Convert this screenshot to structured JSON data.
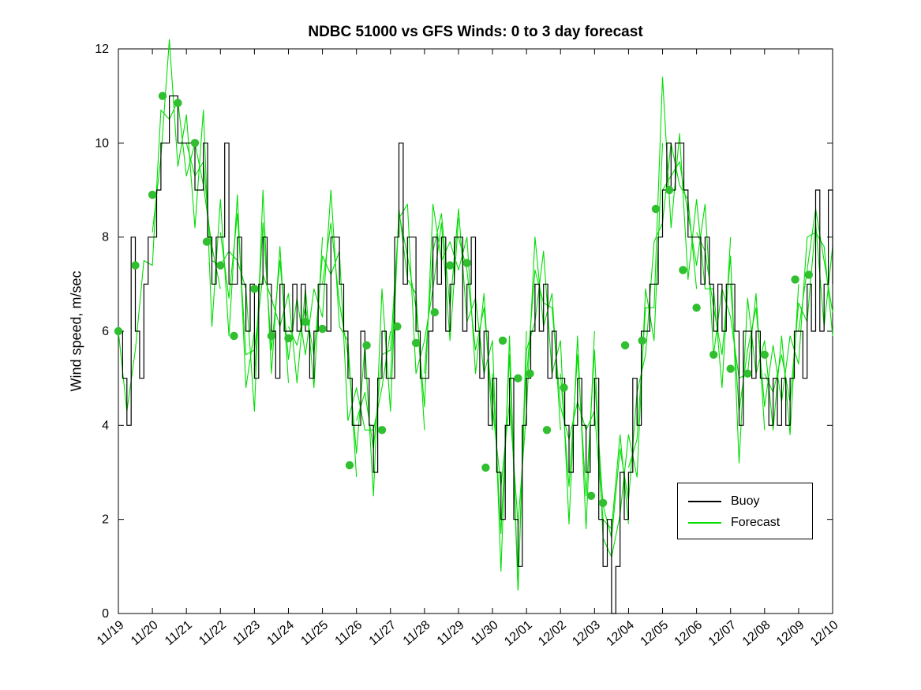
{
  "chart_data": {
    "type": "line",
    "title": "NDBC 51000 vs GFS Winds: 0 to 3 day forecast",
    "xlabel": "",
    "ylabel": "Wind speed, m/sec",
    "ylim": [
      0,
      12
    ],
    "yticks": [
      0,
      2,
      4,
      6,
      8,
      10,
      12
    ],
    "x_range_days": [
      0,
      21
    ],
    "xtick_labels": [
      "11/19",
      "11/20",
      "11/21",
      "11/22",
      "11/23",
      "11/24",
      "11/25",
      "11/26",
      "11/27",
      "11/28",
      "11/29",
      "11/30",
      "12/01",
      "12/02",
      "12/03",
      "12/04",
      "12/05",
      "12/06",
      "12/07",
      "12/08",
      "12/09",
      "12/10"
    ],
    "grid": false,
    "legend": {
      "entries": [
        "Buoy",
        "Forecast"
      ],
      "position": "lower right"
    },
    "colors": {
      "buoy": "#000000",
      "forecast": "#00dd00",
      "dot": "#2fbf2f",
      "axis": "#000000"
    },
    "buoy": {
      "name": "Buoy",
      "style": "stairs",
      "start_day": 0,
      "step_hours": 3,
      "values": [
        6,
        5,
        4,
        8,
        6,
        5,
        7,
        8,
        8,
        9,
        10,
        10,
        11,
        11,
        10,
        10,
        10,
        10,
        9,
        9,
        10,
        8,
        7,
        8,
        8,
        10,
        7,
        7,
        8,
        7,
        6,
        7,
        5,
        7,
        8,
        7,
        6,
        5,
        7,
        6,
        6,
        7,
        6,
        7,
        6,
        5,
        6,
        7,
        7,
        6,
        8,
        8,
        7,
        6,
        5,
        4,
        4,
        6,
        5,
        4,
        3,
        5,
        6,
        5,
        5,
        8,
        10,
        7,
        8,
        8,
        6,
        5,
        5,
        6,
        8,
        7,
        8,
        6,
        7,
        8,
        8,
        6,
        7,
        8,
        6,
        5,
        6,
        4,
        5,
        3,
        2,
        4,
        5,
        2,
        1,
        4,
        5,
        6,
        7,
        6,
        7,
        5,
        6,
        5,
        5,
        4,
        3,
        4,
        5,
        4,
        3,
        4,
        5,
        2,
        1,
        2,
        0,
        1,
        3,
        2,
        3,
        5,
        4,
        6,
        6,
        7,
        7,
        8,
        9,
        10,
        9,
        10,
        10,
        9,
        8,
        8,
        8,
        7,
        8,
        7,
        6,
        7,
        6,
        7,
        7,
        6,
        4,
        6,
        6,
        5,
        6,
        5,
        5,
        4,
        5,
        4,
        5,
        4,
        5,
        6,
        6,
        5,
        7,
        6,
        9,
        6,
        7,
        9,
        7
      ]
    },
    "forecast_runs": [
      {
        "start_day": 0,
        "step_hours": 6,
        "values": [
          6.0,
          4.3,
          5.6,
          7.5,
          7.4,
          10.7,
          10.5,
          10.9,
          9.3,
          10.0,
          9.1,
          7.8,
          6.9
        ]
      },
      {
        "start_day": 1,
        "step_hours": 6,
        "values": [
          8.1,
          9.7,
          12.2,
          9.5,
          10.6,
          8.2,
          10.7,
          6.1,
          8.8,
          5.9,
          8.9,
          4.8,
          6.0
        ]
      },
      {
        "start_day": 2,
        "step_hours": 6,
        "values": [
          10.0,
          9.3,
          9.6,
          7.5,
          7.4,
          7.7,
          7.5,
          6.9,
          4.3,
          9.0,
          5.1,
          7.8,
          4.9
        ]
      },
      {
        "start_day": 3,
        "step_hours": 6,
        "values": [
          8.1,
          6.7,
          8.5,
          5.5,
          5.6,
          7.2,
          6.7,
          6.1,
          6.8,
          4.9,
          6.9,
          4.8,
          8.0
        ]
      },
      {
        "start_day": 4,
        "step_hours": 6,
        "values": [
          5.0,
          8.3,
          5.6,
          7.5,
          5.4,
          6.7,
          5.5,
          6.9,
          6.3,
          9.0,
          6.1,
          5.8,
          2.9
        ]
      },
      {
        "start_day": 5,
        "step_hours": 6,
        "values": [
          6.1,
          5.7,
          6.5,
          5.5,
          7.6,
          7.2,
          7.7,
          4.1,
          4.8,
          3.9,
          3.9,
          4.8,
          6.0
        ]
      },
      {
        "start_day": 6,
        "step_hours": 6,
        "values": [
          7.0,
          8.3,
          6.6,
          5.5,
          3.4,
          5.7,
          2.5,
          6.9,
          4.3,
          8.6,
          7.1,
          6.8,
          3.9
        ]
      },
      {
        "start_day": 7,
        "step_hours": 6,
        "values": [
          4.1,
          4.7,
          3.5,
          5.5,
          5.6,
          8.4,
          8.7,
          5.1,
          5.8,
          6.9,
          8.3,
          5.8,
          8.4
        ]
      },
      {
        "start_day": 8,
        "step_hours": 6,
        "values": [
          5.0,
          8.5,
          7.6,
          6.5,
          4.4,
          8.7,
          7.5,
          7.9,
          7.3,
          8.0,
          5.1,
          6.8,
          3.9
        ]
      },
      {
        "start_day": 9,
        "step_hours": 6,
        "values": [
          5.1,
          7.7,
          8.5,
          6.5,
          8.6,
          6.2,
          6.7,
          5.1,
          5.8,
          0.9,
          5.9,
          0.5,
          6.0
        ]
      },
      {
        "start_day": 10,
        "step_hours": 6,
        "values": [
          8.0,
          7.3,
          5.6,
          6.5,
          4.4,
          2.7,
          4.5,
          1.9,
          4.3,
          8.0,
          6.1,
          6.8,
          3.9
        ]
      },
      {
        "start_day": 11,
        "step_hours": 6,
        "values": [
          5.1,
          1.7,
          5.5,
          0.5,
          5.6,
          6.2,
          7.7,
          5.1,
          5.8,
          1.9,
          5.9,
          1.8,
          6.0
        ]
      },
      {
        "start_day": 12,
        "step_hours": 6,
        "values": [
          5.0,
          7.3,
          6.6,
          6.5,
          4.4,
          3.7,
          4.5,
          3.9,
          4.3,
          2.0,
          1.8,
          3.8,
          1.9
        ]
      },
      {
        "start_day": 13,
        "step_hours": 6,
        "values": [
          5.1,
          2.7,
          5.5,
          2.5,
          5.6,
          1.6,
          1.2,
          2.1,
          3.8,
          2.9,
          6.9,
          5.8,
          10.0
        ]
      },
      {
        "start_day": 14,
        "step_hours": 6,
        "values": [
          5.0,
          2.3,
          1.6,
          3.5,
          2.4,
          4.7,
          5.5,
          7.9,
          8.3,
          10.0,
          9.1,
          8.8,
          6.9
        ]
      },
      {
        "start_day": 15,
        "step_hours": 6,
        "values": [
          3.1,
          3.7,
          6.5,
          6.5,
          11.4,
          8.2,
          10.2,
          7.1,
          8.8,
          6.9,
          6.9,
          4.8,
          8.0
        ]
      },
      {
        "start_day": 16,
        "step_hours": 6,
        "values": [
          9.0,
          9.3,
          9.6,
          8.5,
          7.4,
          8.7,
          5.5,
          6.9,
          6.3,
          5.0,
          5.1,
          6.8,
          3.9
        ]
      },
      {
        "start_day": 17,
        "step_hours": 6,
        "values": [
          8.1,
          7.7,
          6.5,
          5.5,
          7.6,
          3.2,
          6.7,
          5.1,
          5.8,
          3.9,
          5.9,
          3.8,
          7.0
        ]
      },
      {
        "start_day": 18,
        "step_hours": 6,
        "values": [
          7.0,
          4.3,
          5.6,
          6.5,
          4.4,
          5.7,
          4.5,
          5.9,
          5.3,
          8.0,
          8.1,
          7.8,
          5.9
        ]
      },
      {
        "start_day": 19,
        "step_hours": 6,
        "values": [
          5.1,
          4.7,
          5.5,
          4.5,
          6.6,
          6.2,
          8.3,
          6.1,
          7.8
        ]
      },
      {
        "start_day": 20,
        "step_hours": 6,
        "values": [
          6.0,
          7.3,
          8.6,
          7.5,
          6.4
        ]
      }
    ],
    "forecast_dots": [
      [
        0.0,
        6.0
      ],
      [
        0.5,
        7.4
      ],
      [
        1.0,
        8.9
      ],
      [
        1.3,
        11.0
      ],
      [
        1.75,
        10.85
      ],
      [
        2.25,
        10.0
      ],
      [
        2.6,
        7.9
      ],
      [
        3.0,
        7.4
      ],
      [
        3.4,
        5.9
      ],
      [
        4.0,
        6.9
      ],
      [
        4.5,
        5.9
      ],
      [
        5.0,
        5.85
      ],
      [
        5.5,
        6.2
      ],
      [
        6.0,
        6.05
      ],
      [
        6.8,
        3.15
      ],
      [
        7.3,
        5.7
      ],
      [
        7.75,
        3.9
      ],
      [
        8.2,
        6.1
      ],
      [
        8.75,
        5.75
      ],
      [
        9.3,
        6.4
      ],
      [
        9.75,
        7.4
      ],
      [
        10.25,
        7.45
      ],
      [
        10.8,
        3.1
      ],
      [
        11.3,
        5.8
      ],
      [
        11.75,
        5.0
      ],
      [
        12.1,
        5.1
      ],
      [
        12.6,
        3.9
      ],
      [
        13.1,
        4.8
      ],
      [
        13.9,
        2.5
      ],
      [
        14.25,
        2.35
      ],
      [
        14.9,
        5.7
      ],
      [
        15.4,
        5.8
      ],
      [
        15.8,
        8.6
      ],
      [
        16.2,
        9.0
      ],
      [
        16.6,
        7.3
      ],
      [
        17.0,
        6.5
      ],
      [
        17.5,
        5.5
      ],
      [
        18.0,
        5.2
      ],
      [
        18.5,
        5.1
      ],
      [
        19.0,
        5.5
      ],
      [
        19.9,
        7.1
      ],
      [
        20.3,
        7.2
      ]
    ]
  }
}
